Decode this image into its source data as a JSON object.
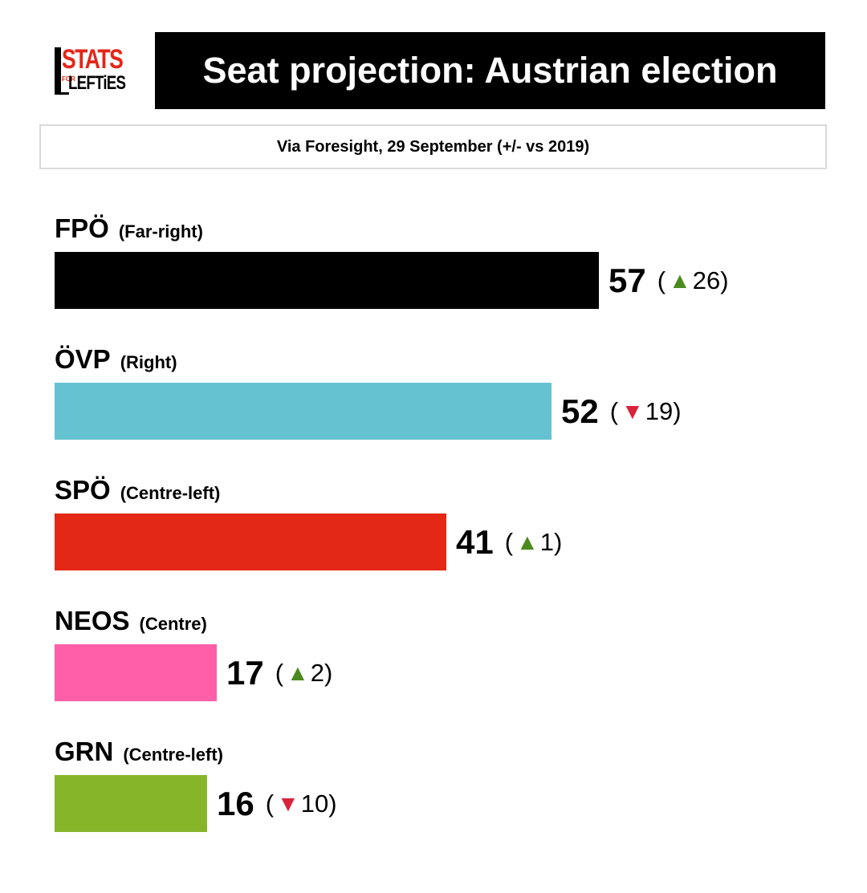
{
  "header": {
    "logo_text_top": "STATS",
    "logo_text_for": "FOR",
    "logo_text_bottom": "LEFTiES",
    "title": "Seat projection: Austrian election",
    "subtitle": "Via Foresight, 29 September (+/- vs 2019)"
  },
  "chart_data": {
    "type": "bar",
    "orientation": "horizontal",
    "title": "Seat projection: Austrian election",
    "subtitle": "Via Foresight, 29 September (+/- vs 2019)",
    "xlim": [
      0,
      57
    ],
    "categories": [
      "FPÖ",
      "ÖVP",
      "SPÖ",
      "NEOS",
      "GRN"
    ],
    "values": [
      57,
      52,
      41,
      17,
      16
    ],
    "bars": [
      {
        "party": "FPÖ",
        "desc": "(Far-right)",
        "seats": 57,
        "change": 26,
        "direction": "up",
        "change_label": "26",
        "color": "#000000"
      },
      {
        "party": "ÖVP",
        "desc": "(Right)",
        "seats": 52,
        "change": -19,
        "direction": "down",
        "change_label": "19",
        "color": "#65c3d1"
      },
      {
        "party": "SPÖ",
        "desc": "(Centre-left)",
        "seats": 41,
        "change": 1,
        "direction": "up",
        "change_label": "1",
        "color": "#e32816"
      },
      {
        "party": "NEOS",
        "desc": "(Centre)",
        "seats": 17,
        "change": 2,
        "direction": "up",
        "change_label": "2",
        "color": "#ff5fa8"
      },
      {
        "party": "GRN",
        "desc": "(Centre-left)",
        "seats": 16,
        "change": -10,
        "direction": "down",
        "change_label": "10",
        "color": "#87b52a"
      }
    ]
  }
}
